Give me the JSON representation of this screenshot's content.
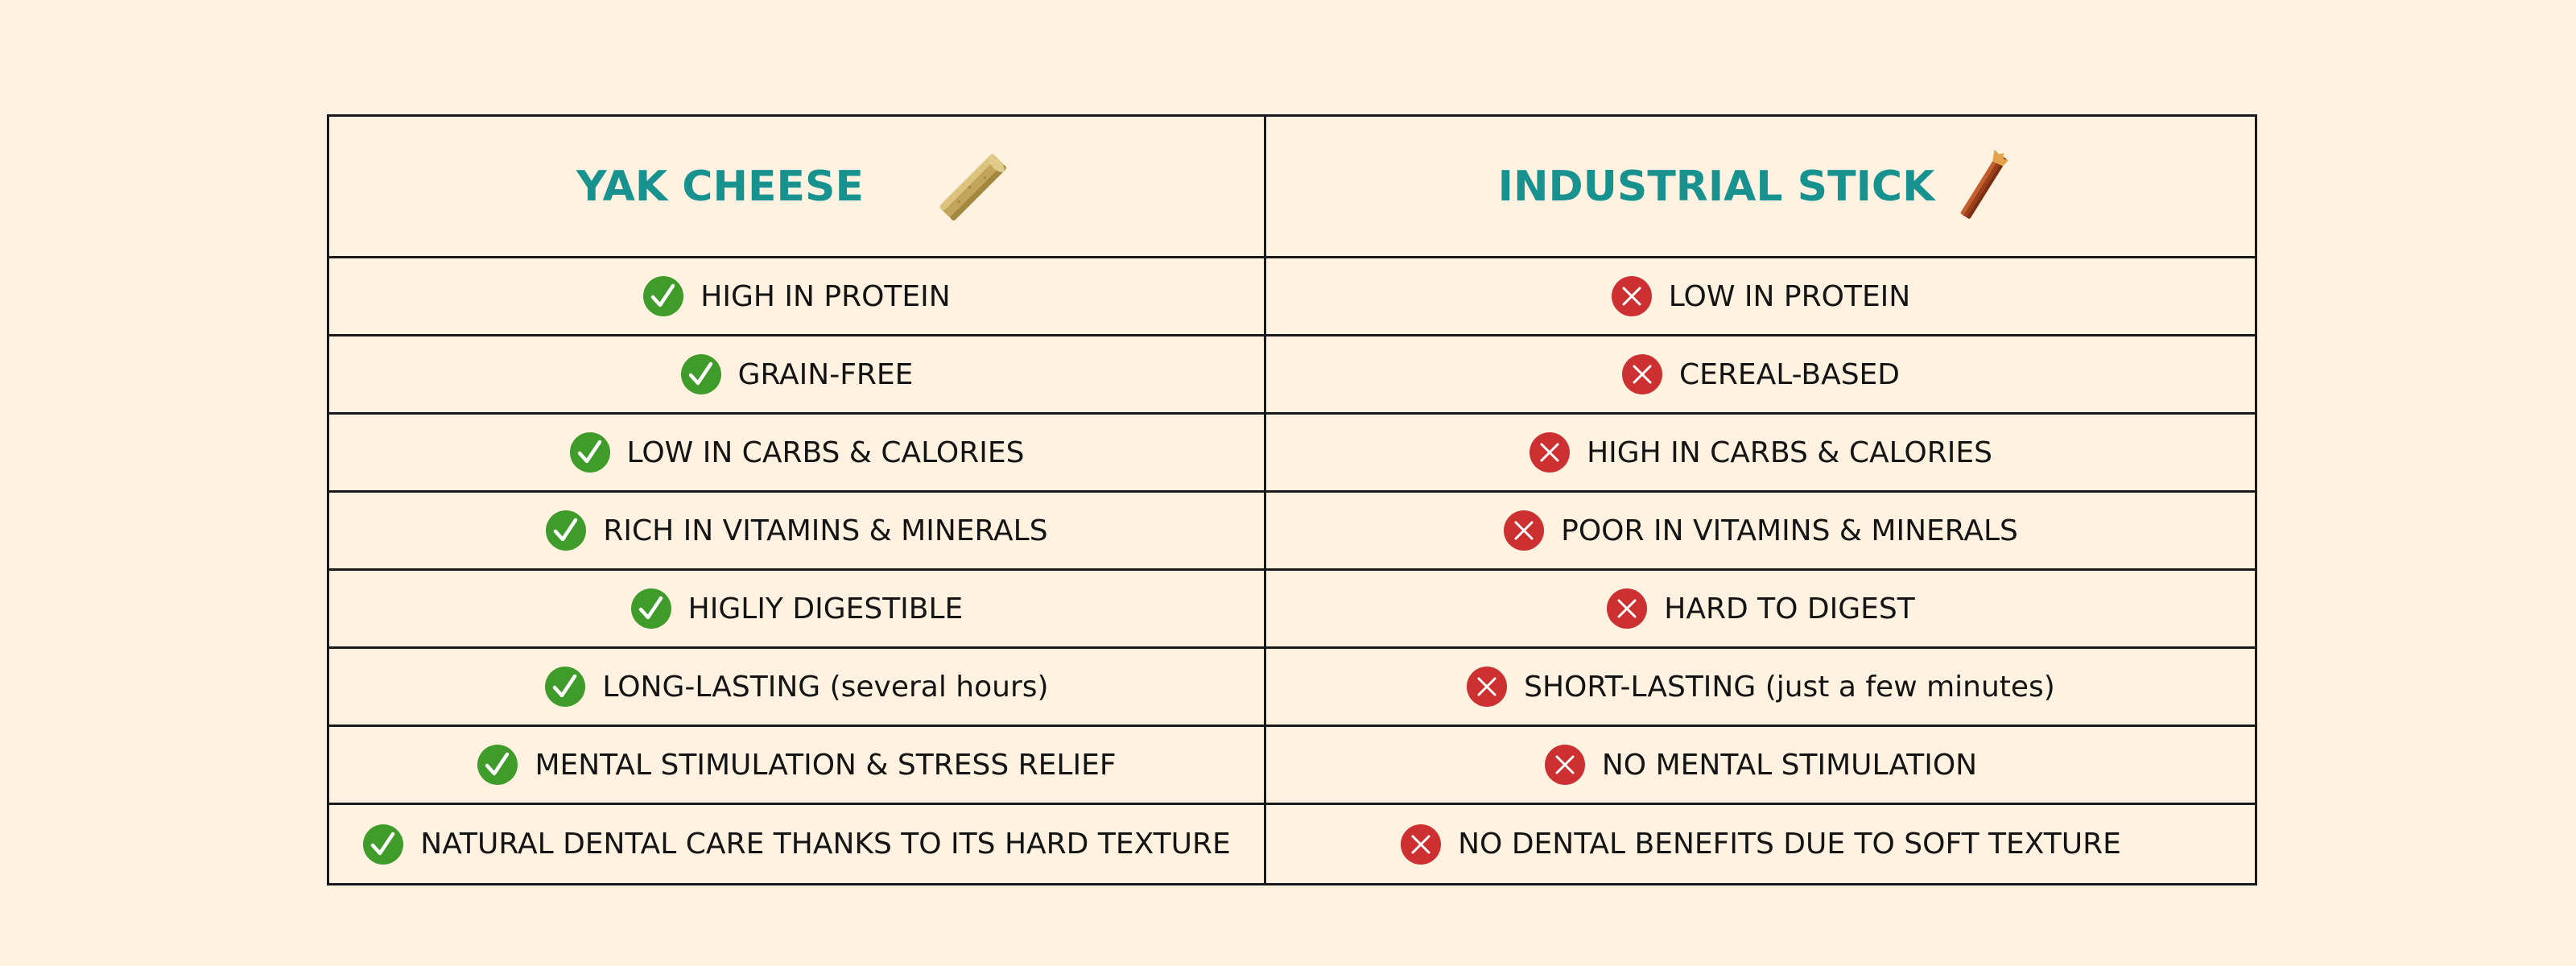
{
  "colors": {
    "background": "#fff2e0",
    "header_text": "#17928f",
    "check_green": "#3f9b2a",
    "cross_red": "#cc3030",
    "border": "#1a1a1a"
  },
  "columns": [
    {
      "title": "YAK CHEESE",
      "icon": "yak-cheese-stick-icon",
      "status_icon": "check-icon",
      "items": [
        "HIGH IN PROTEIN",
        "GRAIN-FREE",
        "LOW IN CARBS & CALORIES",
        "RICH IN VITAMINS & MINERALS",
        "HIGLIY DIGESTIBLE",
        "LONG-LASTING (several hours)",
        "MENTAL STIMULATION & STRESS RELIEF",
        "NATURAL DENTAL CARE THANKS TO ITS HARD TEXTURE"
      ]
    },
    {
      "title": "INDUSTRIAL STICK",
      "icon": "industrial-stick-icon",
      "status_icon": "cross-icon",
      "items": [
        "LOW IN PROTEIN",
        "CEREAL-BASED",
        "HIGH IN CARBS & CALORIES",
        "POOR IN VITAMINS & MINERALS",
        "HARD TO DIGEST",
        "SHORT-LASTING (just a few minutes)",
        "NO MENTAL STIMULATION",
        "NO DENTAL BENEFITS DUE TO SOFT TEXTURE"
      ]
    }
  ]
}
